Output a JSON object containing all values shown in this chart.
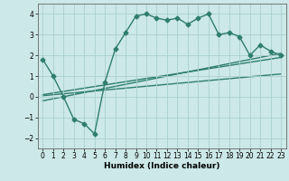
{
  "title": "",
  "xlabel": "Humidex (Indice chaleur)",
  "background_color": "#cce8e8",
  "line_color": "#2e7d6e",
  "grid_color": "#aacfcf",
  "main_series_x": [
    0,
    1,
    2,
    3,
    4,
    5,
    6,
    7,
    8,
    9,
    10,
    11,
    12,
    13,
    14,
    15,
    16,
    17,
    18,
    19,
    20,
    21,
    22,
    23
  ],
  "main_series_y": [
    1.8,
    1.0,
    0.0,
    -1.1,
    -1.3,
    -1.8,
    0.7,
    2.3,
    3.1,
    3.9,
    4.0,
    3.8,
    3.7,
    3.8,
    3.5,
    3.8,
    4.0,
    3.0,
    3.1,
    2.9,
    2.0,
    2.5,
    2.2,
    2.0
  ],
  "line1_x": [
    0,
    23
  ],
  "line1_y": [
    0.1,
    1.9
  ],
  "line2_x": [
    0,
    23
  ],
  "line2_y": [
    -0.2,
    2.1
  ],
  "line3_x": [
    0,
    23
  ],
  "line3_y": [
    0.05,
    1.1
  ],
  "ylim": [
    -2.5,
    4.5
  ],
  "xlim": [
    -0.5,
    23.5
  ],
  "yticks": [
    -2,
    -1,
    0,
    1,
    2,
    3,
    4
  ],
  "xticks": [
    0,
    1,
    2,
    3,
    4,
    5,
    6,
    7,
    8,
    9,
    10,
    11,
    12,
    13,
    14,
    15,
    16,
    17,
    18,
    19,
    20,
    21,
    22,
    23
  ],
  "marker": "D",
  "markersize": 2.5,
  "linewidth": 1.0,
  "tick_fontsize": 5.5,
  "xlabel_fontsize": 6.5
}
